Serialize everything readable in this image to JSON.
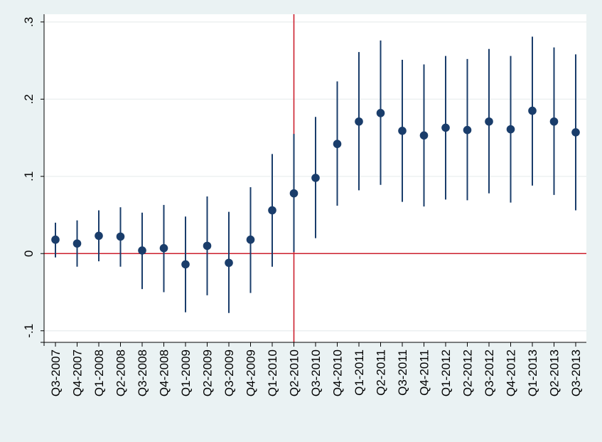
{
  "chart_data": {
    "type": "scatter",
    "subtype": "point-estimates-with-confidence-intervals",
    "title": "",
    "xlabel": "",
    "ylabel": "",
    "categories": [
      "Q3-2007",
      "Q4-2007",
      "Q1-2008",
      "Q2-2008",
      "Q3-2008",
      "Q4-2008",
      "Q1-2009",
      "Q2-2009",
      "Q3-2009",
      "Q4-2009",
      "Q1-2010",
      "Q2-2010",
      "Q3-2010",
      "Q4-2010",
      "Q1-2011",
      "Q2-2011",
      "Q3-2011",
      "Q4-2011",
      "Q1-2012",
      "Q2-2012",
      "Q3-2012",
      "Q4-2012",
      "Q1-2013",
      "Q2-2013",
      "Q3-2013"
    ],
    "estimates": [
      0.018,
      0.013,
      0.023,
      0.022,
      0.004,
      0.007,
      -0.014,
      0.01,
      -0.012,
      0.018,
      0.056,
      0.078,
      0.098,
      0.142,
      0.171,
      0.182,
      0.159,
      0.153,
      0.163,
      0.16,
      0.171,
      0.161,
      0.185,
      0.171,
      0.157
    ],
    "ci_lower": [
      -0.005,
      -0.017,
      -0.01,
      -0.017,
      -0.046,
      -0.05,
      -0.076,
      -0.054,
      -0.077,
      -0.051,
      -0.017,
      0.002,
      0.02,
      0.062,
      0.082,
      0.089,
      0.067,
      0.061,
      0.07,
      0.069,
      0.078,
      0.066,
      0.088,
      0.076,
      0.056
    ],
    "ci_upper": [
      0.04,
      0.043,
      0.056,
      0.06,
      0.053,
      0.063,
      0.048,
      0.074,
      0.054,
      0.086,
      0.129,
      0.155,
      0.177,
      0.223,
      0.261,
      0.276,
      0.251,
      0.245,
      0.256,
      0.252,
      0.265,
      0.256,
      0.281,
      0.267,
      0.258
    ],
    "ylim": [
      -0.115,
      0.31
    ],
    "yticks": [
      -0.1,
      0,
      0.1,
      0.2,
      0.3
    ],
    "ytick_labels": [
      "-.1",
      "0",
      ".1",
      ".2",
      ".3"
    ],
    "reference_lines": {
      "horizontal_y": 0,
      "vertical_category": "Q2-2010"
    },
    "grid": "horizontal",
    "colors": {
      "marker": "#1a3d6b",
      "ci_line": "#1a3d6b",
      "reference": "#cc1f2e",
      "grid": "#e8edee",
      "background": "#eaf2f3",
      "plot_background": "#ffffff"
    }
  }
}
